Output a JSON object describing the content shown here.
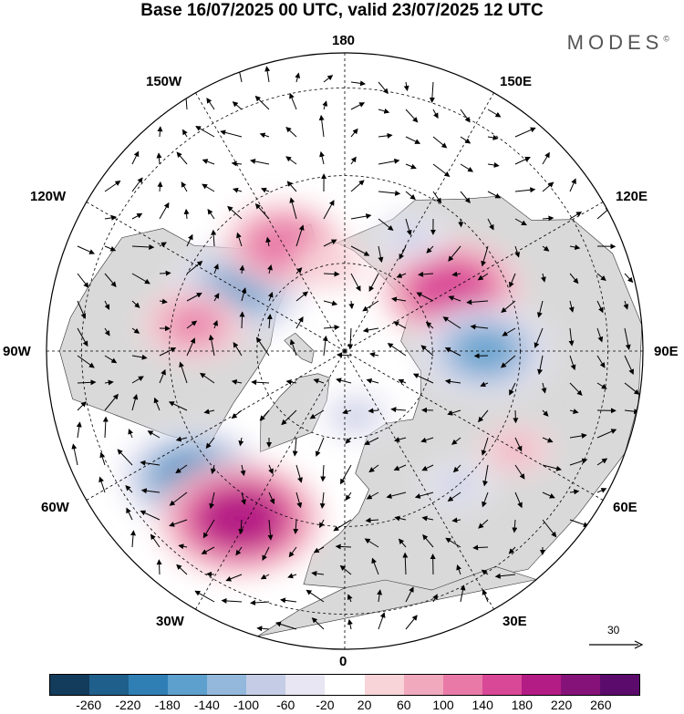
{
  "title": "Base 16/07/2025 00 UTC, valid 23/07/2025 12 UTC",
  "brand": "MODES",
  "brand_mark": "©",
  "longitude_labels": {
    "top": "180",
    "bottom": "0",
    "left": "90W",
    "right": "90E",
    "upper_left": "150W",
    "upper_right": "150E",
    "mid_upper_left": "120W",
    "mid_upper_right": "120E",
    "mid_lower_left": "60W",
    "mid_lower_right": "60E",
    "lower_left": "30W",
    "lower_right": "30E"
  },
  "reference_vector": "30",
  "colorbar": {
    "colors": [
      "#133b5c",
      "#1f5f8b",
      "#2f7fb5",
      "#5d9fcd",
      "#93b8db",
      "#c4cde5",
      "#e8e6f2",
      "#ffffff",
      "#f8d4d8",
      "#f1a9bd",
      "#e97aa8",
      "#d94797",
      "#b31c84",
      "#851278",
      "#5b0b6c"
    ],
    "labels": [
      "-260",
      "-220",
      "-180",
      "-140",
      "-100",
      "-60",
      "-20",
      "20",
      "60",
      "100",
      "140",
      "180",
      "220",
      "260"
    ]
  },
  "map": {
    "land_color": "#d9d9d9",
    "ocean_color": "#ffffff",
    "anomaly_blobs": [
      {
        "lon": -120,
        "lat": 62,
        "value": -170
      },
      {
        "lon": -150,
        "lat": 62,
        "value": 140
      },
      {
        "lon": -100,
        "lat": 55,
        "value": 120
      },
      {
        "lon": -50,
        "lat": 45,
        "value": -180
      },
      {
        "lon": -32,
        "lat": 45,
        "value": 220
      },
      {
        "lon": 10,
        "lat": 75,
        "value": -60
      },
      {
        "lon": 120,
        "lat": 62,
        "value": 180
      },
      {
        "lon": 90,
        "lat": 58,
        "value": -170
      },
      {
        "lon": 60,
        "lat": 45,
        "value": 70
      },
      {
        "lon": 150,
        "lat": 60,
        "value": -60
      },
      {
        "lon": -170,
        "lat": 70,
        "value": 60
      },
      {
        "lon": 40,
        "lat": 50,
        "value": -60
      }
    ]
  }
}
